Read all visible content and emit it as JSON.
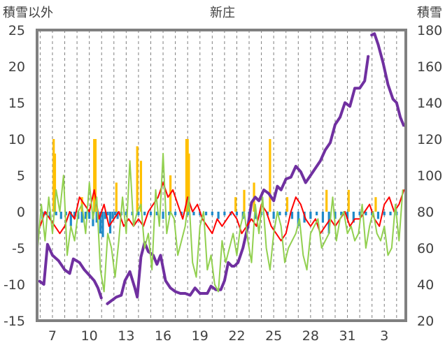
{
  "chart_data": {
    "type": "line",
    "title": "新庄",
    "ylabel_left": "積雪以外",
    "ylabel_right": "積雪",
    "xlabel": "",
    "x_tick_labels": [
      "7",
      "10",
      "13",
      "16",
      "19",
      "22",
      "25",
      "28",
      "31",
      "3"
    ],
    "x_tick_days": [
      7,
      10,
      13,
      16,
      19,
      22,
      25,
      28,
      31,
      34
    ],
    "x_range": [
      5.75,
      35.75
    ],
    "y_left_ticks": [
      25,
      20,
      15,
      10,
      5,
      0,
      -5,
      -10,
      -15
    ],
    "y_left_range": [
      -15,
      25
    ],
    "y_right_ticks": [
      180,
      160,
      140,
      120,
      100,
      80,
      60,
      40,
      20
    ],
    "y_right_range": [
      20,
      180
    ],
    "grid": "vertical dashed",
    "series": [
      {
        "axis": "right",
        "color": "#7030a0",
        "x": [
          5.9,
          6.3,
          6.6,
          7.0,
          7.5,
          8.0,
          8.4,
          8.7,
          9.2,
          9.6,
          10.0,
          10.4,
          10.7,
          11.0
        ],
        "values": [
          42,
          40,
          62,
          56,
          53,
          48,
          46,
          54,
          52,
          48,
          45,
          42,
          38,
          32
        ]
      },
      {
        "axis": "right",
        "color": "#7030a0",
        "x": [
          11.4,
          11.8,
          12.2,
          12.6,
          12.9,
          13.3,
          13.7,
          13.9,
          14.2,
          14.5,
          14.8,
          15.2,
          15.5,
          15.8,
          16.2,
          16.6,
          17.0,
          17.4,
          17.8,
          18.2,
          18.6,
          19.0,
          19.4,
          19.6,
          19.9,
          20.3,
          20.7,
          21.0,
          21.3,
          21.6,
          21.8,
          22.1,
          22.5,
          22.9,
          23.2,
          23.5,
          23.8,
          24.2,
          24.6,
          25.0,
          25.3,
          25.6,
          26.0,
          26.4,
          26.8,
          27.2,
          27.6,
          28.0,
          28.4,
          28.8,
          29.2,
          29.6,
          30.0,
          30.4,
          30.8,
          31.2,
          31.6,
          32.0,
          32.4,
          32.7
        ],
        "values": [
          29,
          31,
          33,
          34,
          42,
          47,
          38,
          33,
          55,
          63,
          58,
          56,
          51,
          56,
          42,
          38,
          36,
          35,
          35,
          34,
          38,
          35,
          35,
          35,
          39,
          37,
          37,
          42,
          52,
          50,
          50,
          52,
          60,
          72,
          85,
          88,
          86,
          92,
          90,
          86,
          94,
          92,
          98,
          99,
          105,
          102,
          96,
          100,
          104,
          108,
          114,
          118,
          128,
          132,
          140,
          138,
          148,
          148,
          152,
          166
        ]
      },
      {
        "axis": "right",
        "color": "#7030a0",
        "x": [
          32.9,
          33.2,
          33.5,
          33.9,
          34.3,
          34.7,
          35.0,
          35.3,
          35.6
        ],
        "values": [
          177,
          178,
          172,
          162,
          150,
          142,
          140,
          132,
          127
        ]
      },
      {
        "axis": "left",
        "color": "#ff0000",
        "x": [
          6.0,
          6.4,
          6.8,
          7.2,
          7.6,
          8.0,
          8.4,
          8.8,
          9.2,
          9.6,
          10.0,
          10.4,
          10.8,
          11.2,
          11.6,
          12.0,
          12.4,
          12.8,
          13.2,
          13.6,
          14.0,
          14.4,
          14.8,
          15.2,
          15.6,
          16.0,
          16.4,
          16.8,
          17.2,
          17.6,
          18.0,
          18.4,
          18.8,
          19.2,
          19.6,
          20.0,
          20.4,
          20.8,
          21.2,
          21.6,
          22.0,
          22.4,
          22.8,
          23.2,
          23.6,
          24.0,
          24.4,
          24.8,
          25.2,
          25.6,
          26.0,
          26.4,
          26.8,
          27.2,
          27.6,
          28.0,
          28.4,
          28.8,
          29.2,
          29.6,
          30.0,
          30.4,
          30.8,
          31.2,
          31.6,
          32.0,
          32.4,
          32.8,
          33.2,
          33.6,
          34.0,
          34.4,
          34.8,
          35.2,
          35.6
        ],
        "values": [
          -2,
          0,
          -1,
          -2,
          -3,
          -2,
          0,
          -1,
          2,
          1,
          0,
          3,
          -1,
          1,
          -2,
          -1,
          0,
          -2,
          -1,
          -2,
          -1,
          -2,
          0,
          1,
          2,
          4,
          2,
          3,
          1,
          -1,
          2,
          0,
          1,
          -1,
          -2,
          -3,
          -1,
          -2,
          -1,
          0,
          -1,
          -3,
          -2,
          -1,
          -2,
          1,
          0,
          -2,
          -3,
          -4,
          -3,
          0,
          2,
          1,
          -1,
          -2,
          -1,
          -3,
          -2,
          -1,
          -2,
          -1,
          0,
          -2,
          -1,
          -1,
          0,
          1,
          -1,
          -2,
          1,
          2,
          0,
          1,
          3
        ]
      },
      {
        "axis": "left",
        "color": "#92d050",
        "x": [
          5.8,
          6.1,
          6.4,
          6.7,
          7.0,
          7.3,
          7.6,
          7.9,
          8.2,
          8.5,
          8.8,
          9.1,
          9.4,
          9.7,
          10.0,
          10.3,
          10.6,
          10.9,
          11.2,
          11.5,
          11.8,
          12.1,
          12.4,
          12.7,
          13.0,
          13.3,
          13.6,
          13.9,
          14.2,
          14.5,
          14.8,
          15.1,
          15.4,
          15.7,
          16.0,
          16.3,
          16.6,
          16.9,
          17.2,
          17.5,
          17.8,
          18.1,
          18.4,
          18.7,
          19.0,
          19.3,
          19.6,
          19.9,
          20.2,
          20.5,
          20.8,
          21.1,
          21.4,
          21.7,
          22.0,
          22.3,
          22.6,
          22.9,
          23.2,
          23.5,
          23.8,
          24.1,
          24.4,
          24.7,
          25.0,
          25.3,
          25.6,
          25.9,
          26.2,
          26.5,
          26.8,
          27.1,
          27.4,
          27.7,
          28.0,
          28.3,
          28.6,
          28.9,
          29.2,
          29.5,
          29.8,
          30.1,
          30.4,
          30.7,
          31.0,
          31.3,
          31.6,
          31.9,
          32.2,
          32.5,
          32.8,
          33.1,
          33.4,
          33.7,
          34.0,
          34.3,
          34.6,
          34.9,
          35.2,
          35.5
        ],
        "values": [
          -5,
          1,
          -4,
          2,
          -3,
          3,
          0,
          5,
          -6,
          -2,
          -4,
          0,
          1,
          -3,
          4,
          -1,
          2,
          -8,
          -11,
          -3,
          -5,
          -9,
          -4,
          2,
          -3,
          7,
          -2,
          0,
          1,
          -5,
          -3,
          -8,
          3,
          -2,
          8,
          -3,
          0,
          -1,
          -6,
          -4,
          -2,
          2,
          -7,
          -9,
          -2,
          0,
          -8,
          -6,
          -10,
          -11,
          -4,
          -7,
          -5,
          -3,
          -6,
          -2,
          0,
          -4,
          -7,
          1,
          -3,
          2,
          -5,
          -8,
          -3,
          0,
          -2,
          -7,
          -5,
          -4,
          -3,
          -1,
          -6,
          -8,
          -3,
          -2,
          -1,
          -5,
          -4,
          -3,
          2,
          -4,
          -1,
          0,
          -3,
          -2,
          -4,
          -3,
          1,
          -5,
          -2,
          0,
          -3,
          -4,
          -2,
          -6,
          -5,
          1,
          -4,
          3
        ]
      },
      {
        "axis": "left",
        "color": "#ffc000",
        "kind": "bar",
        "x": [
          7.1,
          7.2,
          9.4,
          10.4,
          10.5,
          12.2,
          13.9,
          14.2,
          16.6,
          17.9,
          18.0,
          18.1,
          21.9,
          22.6,
          23.4,
          24.7,
          26.1,
          29.3,
          31.1,
          33.3
        ],
        "values": [
          10,
          8,
          2,
          10,
          10,
          4,
          9,
          7,
          5,
          10,
          10,
          8,
          2,
          3,
          4,
          10,
          2,
          3,
          3,
          2
        ]
      },
      {
        "axis": "left",
        "color": "#1f8ac9",
        "kind": "bar",
        "x": [
          6.2,
          6.5,
          6.8,
          7.3,
          7.7,
          8.1,
          8.5,
          8.8,
          9.1,
          9.4,
          9.7,
          10.0,
          10.3,
          10.6,
          10.9,
          11.1,
          11.3,
          11.5,
          11.7,
          11.9,
          12.1,
          12.3,
          12.6,
          13.0,
          13.5,
          14.0,
          14.5,
          15.0,
          15.5,
          16.0,
          16.5,
          17.0,
          17.5,
          18.0,
          18.5,
          19.0,
          19.5,
          20.0,
          20.5,
          21.0,
          21.5,
          22.0,
          22.5,
          23.0,
          23.5,
          24.0,
          24.5,
          25.0,
          25.5,
          26.0,
          26.5,
          27.0,
          27.5,
          28.0,
          28.5,
          29.0,
          29.5,
          30.0,
          30.5,
          31.0,
          31.5,
          32.0,
          32.5,
          33.0,
          33.5,
          34.0,
          34.5,
          35.0
        ],
        "values": [
          -1,
          -0.5,
          -1,
          -0.5,
          -1,
          -0.5,
          -2,
          -1,
          -1,
          -1.5,
          -1,
          -1,
          -2,
          -1.5,
          -3,
          -3.5,
          -1,
          -0.5,
          -3,
          -1,
          -0.5,
          -1,
          -0.5,
          -0.5,
          -0.5,
          -0.5,
          -0.5,
          -0.5,
          -0.5,
          -1,
          -0.5,
          -0.5,
          -0.5,
          -0.5,
          -0.5,
          -0.5,
          -0.5,
          -0.5,
          -1,
          -0.5,
          -0.5,
          -0.5,
          -1,
          -1.5,
          -1,
          -0.5,
          -0.5,
          -1,
          -0.5,
          -0.5,
          -1,
          -2,
          -1.5,
          -1,
          -0.5,
          -1.5,
          -3,
          -1,
          -0.5,
          -1,
          -1.5,
          -0.5,
          -0.5,
          -0.5,
          -1,
          -0.5,
          -0.5,
          -0.5
        ]
      }
    ]
  }
}
